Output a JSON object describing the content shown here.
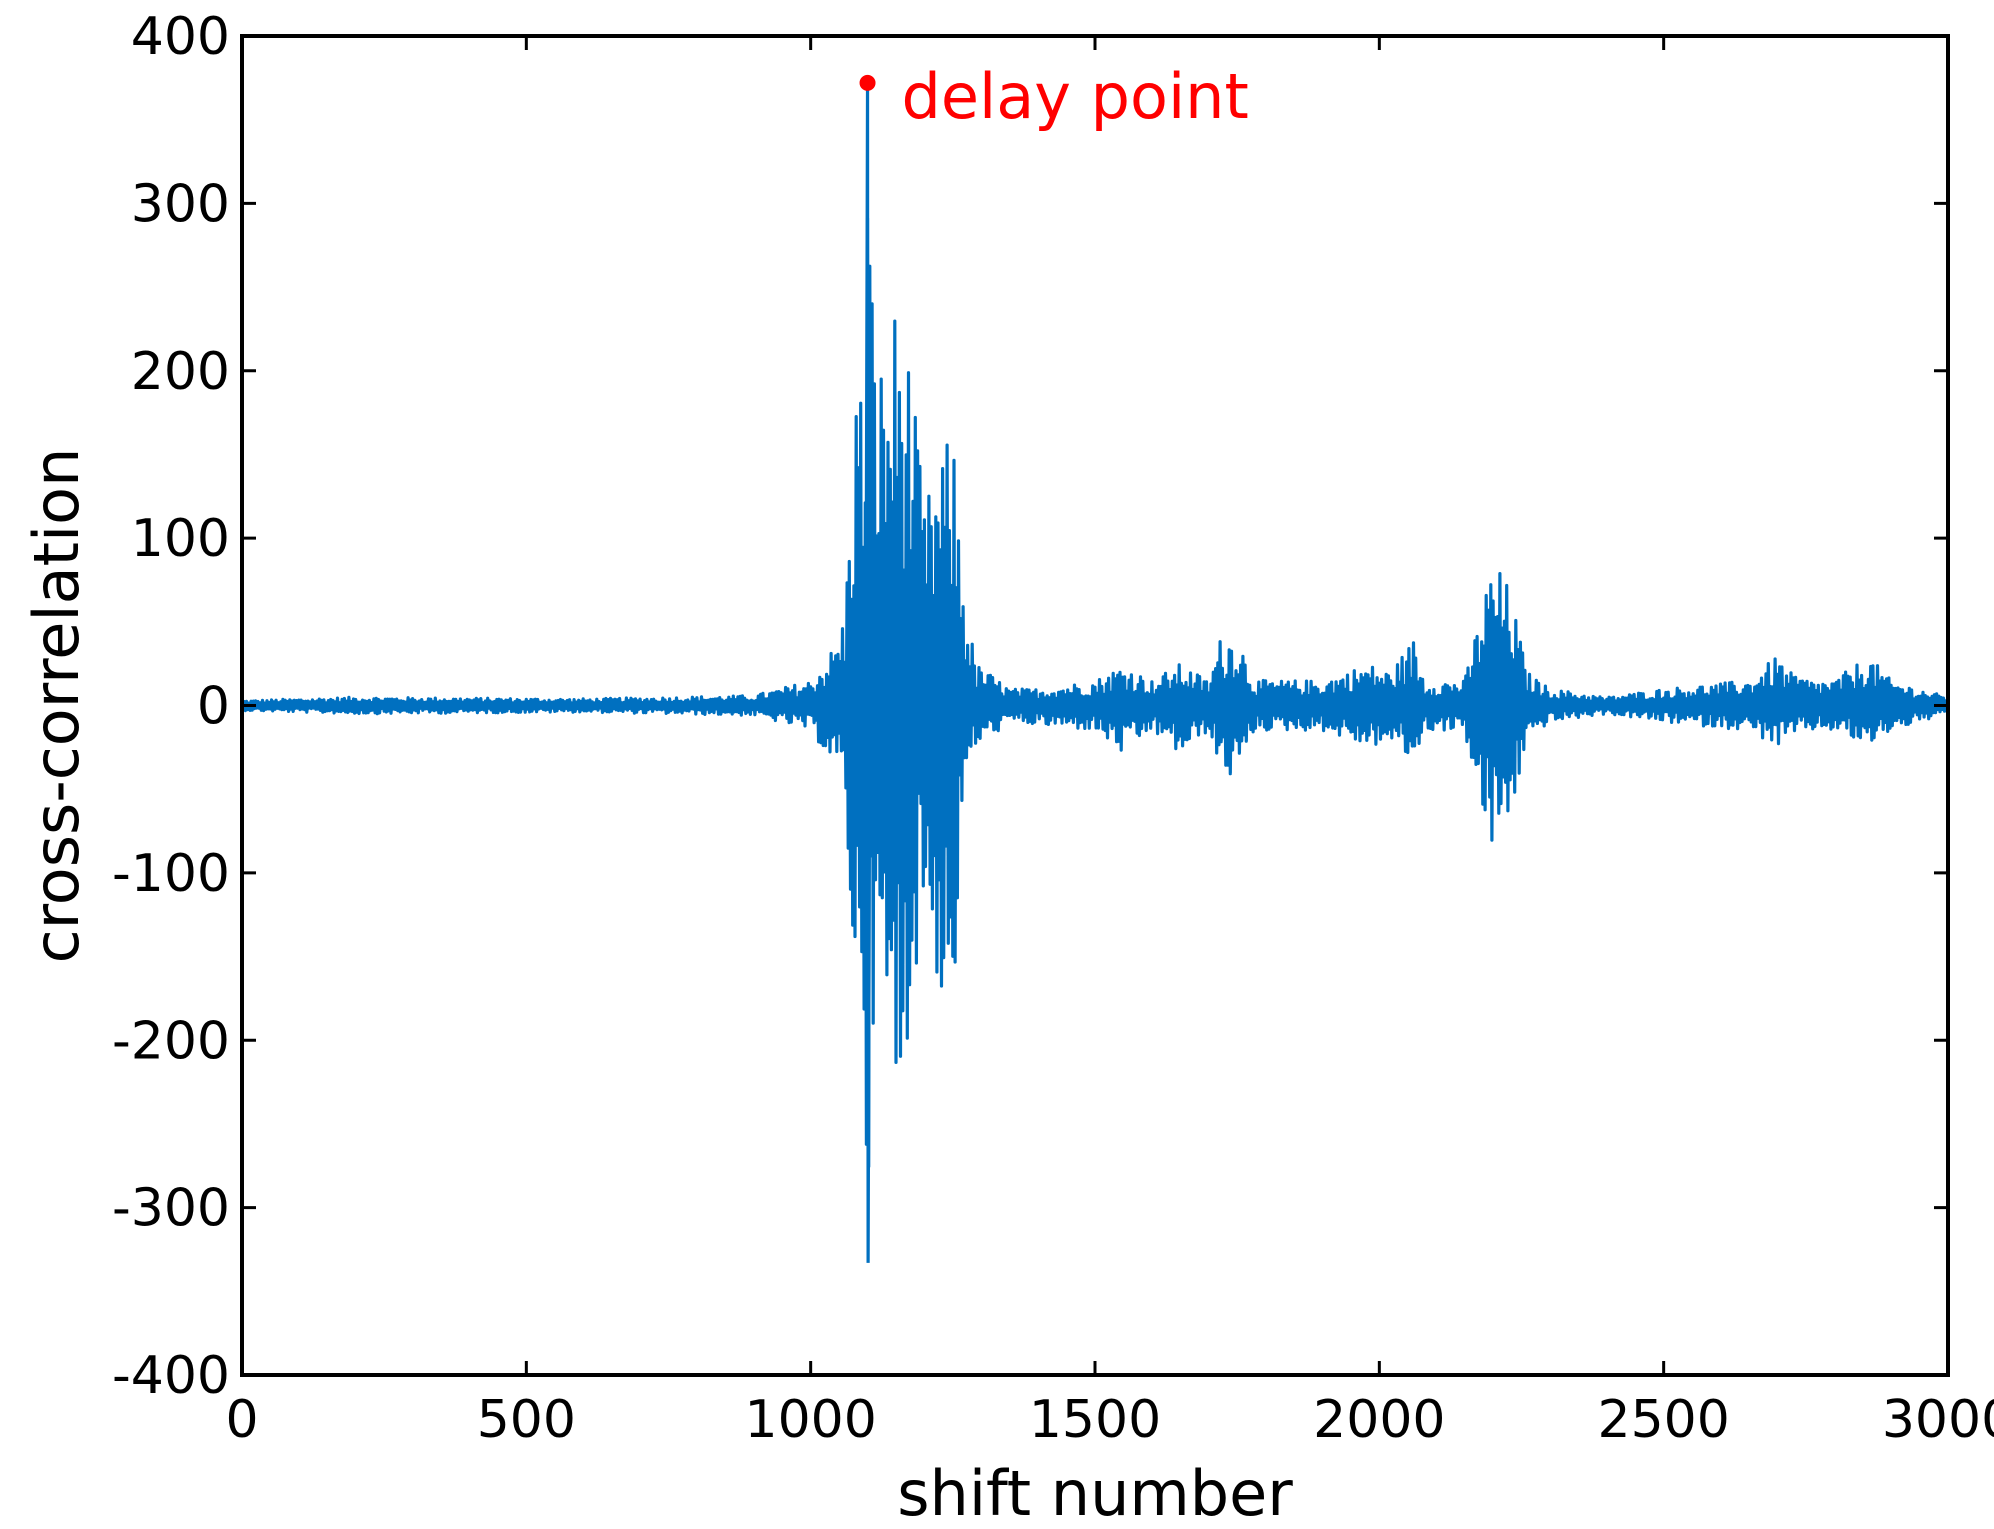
{
  "chart_data": {
    "type": "line",
    "title": "",
    "xlabel": "shift number",
    "ylabel": "cross-correlation",
    "xlim": [
      0,
      3000
    ],
    "ylim": [
      -400,
      400
    ],
    "x_ticks": [
      0,
      500,
      1000,
      1500,
      2000,
      2500,
      3000
    ],
    "y_ticks": [
      400,
      300,
      200,
      100,
      0,
      -100,
      -200,
      -300,
      -400
    ],
    "x_tick_labels": [
      "0",
      "500",
      "1000",
      "1500",
      "2000",
      "2500",
      "3000"
    ],
    "y_tick_labels": [
      "400",
      "300",
      "200",
      "100",
      "0",
      "-100",
      "-200",
      "-300",
      "-400"
    ],
    "grid": false,
    "legend": "none",
    "colors": {
      "series": "#0070C0",
      "annotation": "#FF0000",
      "axes": "#000000"
    },
    "series": [
      {
        "color": "#0070C0",
        "envelope_description": "oscillating signal; values below are approximate positive/negative envelope amplitudes at given shift numbers",
        "envelope_x": [
          0,
          200,
          600,
          900,
          1000,
          1040,
          1060,
          1080,
          1095,
          1100,
          1110,
          1130,
          1150,
          1170,
          1200,
          1230,
          1250,
          1270,
          1290,
          1320,
          1350,
          1400,
          1500,
          1550,
          1600,
          1650,
          1700,
          1720,
          1750,
          1780,
          1800,
          1900,
          1980,
          2020,
          2060,
          2080,
          2100,
          2150,
          2180,
          2200,
          2230,
          2260,
          2300,
          2400,
          2500,
          2650,
          2700,
          2720,
          2760,
          2800,
          2860,
          2900,
          3000
        ],
        "envelope_pos": [
          3,
          5,
          4,
          6,
          15,
          35,
          55,
          200,
          190,
          372,
          230,
          200,
          244,
          220,
          120,
          150,
          165,
          70,
          25,
          18,
          10,
          10,
          15,
          25,
          15,
          25,
          15,
          40,
          45,
          15,
          15,
          15,
          25,
          20,
          40,
          15,
          15,
          15,
          60,
          88,
          70,
          20,
          10,
          5,
          10,
          15,
          30,
          20,
          15,
          15,
          30,
          15,
          5
        ],
        "envelope_neg": [
          -3,
          -5,
          -4,
          -6,
          -15,
          -35,
          -55,
          -190,
          -200,
          -333,
          -190,
          -200,
          -260,
          -200,
          -120,
          -180,
          -190,
          -50,
          -25,
          -18,
          -10,
          -12,
          -15,
          -30,
          -15,
          -30,
          -15,
          -40,
          -45,
          -15,
          -15,
          -15,
          -25,
          -22,
          -35,
          -15,
          -15,
          -15,
          -70,
          -90,
          -70,
          -20,
          -10,
          -5,
          -10,
          -15,
          -25,
          -20,
          -15,
          -15,
          -25,
          -15,
          -5
        ]
      }
    ],
    "annotations": [
      {
        "text": "delay point",
        "x": 1100,
        "y": 372,
        "color": "#FF0000"
      }
    ]
  }
}
